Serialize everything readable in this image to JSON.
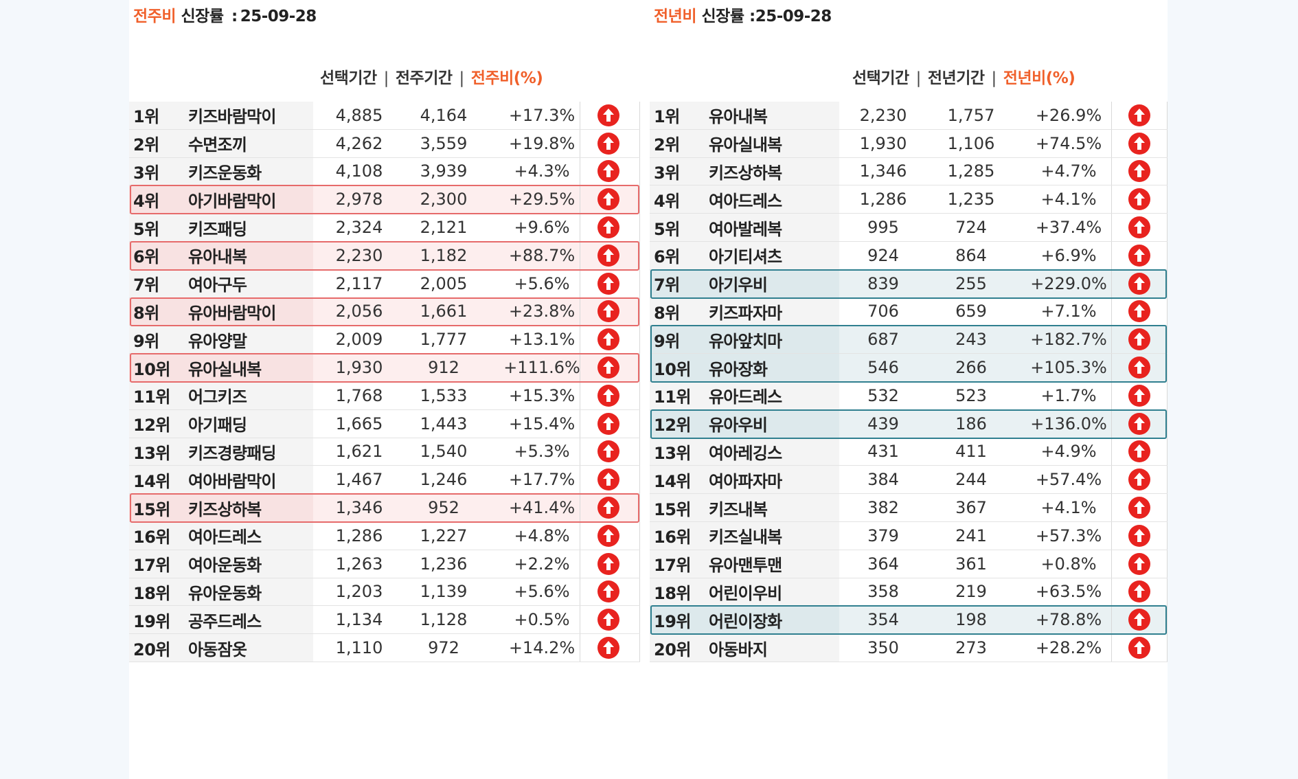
{
  "left": {
    "title": {
      "accent": "전주비",
      "label": "신장률",
      "sep": ":",
      "date": "25-09-28"
    },
    "headers": {
      "col1": "선택기간",
      "divider": "|",
      "col2": "전주기간",
      "col3": "전주비(%)"
    },
    "rows": [
      {
        "rank": "1위",
        "name": "키즈바람막이",
        "a": "4,885",
        "b": "4,164",
        "pct": "+17.3%"
      },
      {
        "rank": "2위",
        "name": "수면조끼",
        "a": "4,262",
        "b": "3,559",
        "pct": "+19.8%"
      },
      {
        "rank": "3위",
        "name": "키즈운동화",
        "a": "4,108",
        "b": "3,939",
        "pct": "+4.3%"
      },
      {
        "rank": "4위",
        "name": "아기바람막이",
        "a": "2,978",
        "b": "2,300",
        "pct": "+29.5%"
      },
      {
        "rank": "5위",
        "name": "키즈패딩",
        "a": "2,324",
        "b": "2,121",
        "pct": "+9.6%"
      },
      {
        "rank": "6위",
        "name": "유아내복",
        "a": "2,230",
        "b": "1,182",
        "pct": "+88.7%"
      },
      {
        "rank": "7위",
        "name": "여아구두",
        "a": "2,117",
        "b": "2,005",
        "pct": "+5.6%"
      },
      {
        "rank": "8위",
        "name": "유아바람막이",
        "a": "2,056",
        "b": "1,661",
        "pct": "+23.8%"
      },
      {
        "rank": "9위",
        "name": "유아양말",
        "a": "2,009",
        "b": "1,777",
        "pct": "+13.1%"
      },
      {
        "rank": "10위",
        "name": "유아실내복",
        "a": "1,930",
        "b": "912",
        "pct": "+111.6%"
      },
      {
        "rank": "11위",
        "name": "어그키즈",
        "a": "1,768",
        "b": "1,533",
        "pct": "+15.3%"
      },
      {
        "rank": "12위",
        "name": "아기패딩",
        "a": "1,665",
        "b": "1,443",
        "pct": "+15.4%"
      },
      {
        "rank": "13위",
        "name": "키즈경량패딩",
        "a": "1,621",
        "b": "1,540",
        "pct": "+5.3%"
      },
      {
        "rank": "14위",
        "name": "여아바람막이",
        "a": "1,467",
        "b": "1,246",
        "pct": "+17.7%"
      },
      {
        "rank": "15위",
        "name": "키즈상하복",
        "a": "1,346",
        "b": "952",
        "pct": "+41.4%"
      },
      {
        "rank": "16위",
        "name": "여아드레스",
        "a": "1,286",
        "b": "1,227",
        "pct": "+4.8%"
      },
      {
        "rank": "17위",
        "name": "여아운동화",
        "a": "1,263",
        "b": "1,236",
        "pct": "+2.2%"
      },
      {
        "rank": "18위",
        "name": "유아운동화",
        "a": "1,203",
        "b": "1,139",
        "pct": "+5.6%"
      },
      {
        "rank": "19위",
        "name": "공주드레스",
        "a": "1,134",
        "b": "1,128",
        "pct": "+0.5%"
      },
      {
        "rank": "20위",
        "name": "아동잠옷",
        "a": "1,110",
        "b": "972",
        "pct": "+14.2%"
      }
    ],
    "highlight_rows": [
      4,
      6,
      8,
      10,
      15
    ]
  },
  "right": {
    "title": {
      "accent": "전년비",
      "label": "신장률",
      "sep": ":",
      "date": "25-09-28"
    },
    "headers": {
      "col1": "선택기간",
      "divider": "|",
      "col2": "전년기간",
      "col3": "전년비(%)"
    },
    "rows": [
      {
        "rank": "1위",
        "name": "유아내복",
        "a": "2,230",
        "b": "1,757",
        "pct": "+26.9%"
      },
      {
        "rank": "2위",
        "name": "유아실내복",
        "a": "1,930",
        "b": "1,106",
        "pct": "+74.5%"
      },
      {
        "rank": "3위",
        "name": "키즈상하복",
        "a": "1,346",
        "b": "1,285",
        "pct": "+4.7%"
      },
      {
        "rank": "4위",
        "name": "여아드레스",
        "a": "1,286",
        "b": "1,235",
        "pct": "+4.1%"
      },
      {
        "rank": "5위",
        "name": "여아발레복",
        "a": "995",
        "b": "724",
        "pct": "+37.4%"
      },
      {
        "rank": "6위",
        "name": "아기티셔츠",
        "a": "924",
        "b": "864",
        "pct": "+6.9%"
      },
      {
        "rank": "7위",
        "name": "아기우비",
        "a": "839",
        "b": "255",
        "pct": "+229.0%"
      },
      {
        "rank": "8위",
        "name": "키즈파자마",
        "a": "706",
        "b": "659",
        "pct": "+7.1%"
      },
      {
        "rank": "9위",
        "name": "유아앞치마",
        "a": "687",
        "b": "243",
        "pct": "+182.7%"
      },
      {
        "rank": "10위",
        "name": "유아장화",
        "a": "546",
        "b": "266",
        "pct": "+105.3%"
      },
      {
        "rank": "11위",
        "name": "유아드레스",
        "a": "532",
        "b": "523",
        "pct": "+1.7%"
      },
      {
        "rank": "12위",
        "name": "유아우비",
        "a": "439",
        "b": "186",
        "pct": "+136.0%"
      },
      {
        "rank": "13위",
        "name": "여아레깅스",
        "a": "431",
        "b": "411",
        "pct": "+4.9%"
      },
      {
        "rank": "14위",
        "name": "여아파자마",
        "a": "384",
        "b": "244",
        "pct": "+57.4%"
      },
      {
        "rank": "15위",
        "name": "키즈내복",
        "a": "382",
        "b": "367",
        "pct": "+4.1%"
      },
      {
        "rank": "16위",
        "name": "키즈실내복",
        "a": "379",
        "b": "241",
        "pct": "+57.3%"
      },
      {
        "rank": "17위",
        "name": "유아맨투맨",
        "a": "364",
        "b": "361",
        "pct": "+0.8%"
      },
      {
        "rank": "18위",
        "name": "어린이우비",
        "a": "358",
        "b": "219",
        "pct": "+63.5%"
      },
      {
        "rank": "19위",
        "name": "어린이장화",
        "a": "354",
        "b": "198",
        "pct": "+78.8%"
      },
      {
        "rank": "20위",
        "name": "아동바지",
        "a": "350",
        "b": "273",
        "pct": "+28.2%"
      }
    ],
    "highlight_groups": [
      [
        7
      ],
      [
        9,
        10
      ],
      [
        12
      ],
      [
        19
      ]
    ]
  },
  "icons": {
    "trend": "up-arrow-circle-icon"
  },
  "colors": {
    "accent": "#f0602b",
    "icon_red": "#e8231f",
    "icon_teal_tint": "#c9252a",
    "highlight_red": "#e66a6a",
    "highlight_teal": "#2f7f8f"
  }
}
